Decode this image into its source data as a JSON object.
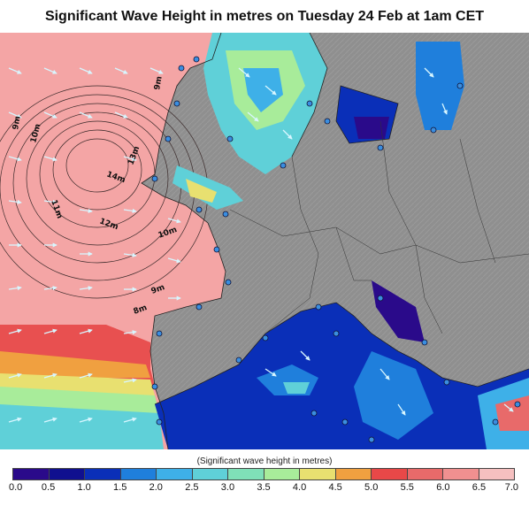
{
  "title": "Significant Wave Height in metres on Tuesday 24 Feb at 1am CET",
  "legend": {
    "caption": "(Significant wave height in metres)",
    "ticks": [
      "0.0",
      "0.5",
      "1.0",
      "1.5",
      "2.0",
      "2.5",
      "3.0",
      "3.5",
      "4.0",
      "4.5",
      "5.0",
      "5.5",
      "6.0",
      "6.5",
      "7.0"
    ],
    "colors": [
      "#2a0a8a",
      "#10108f",
      "#0a2fb8",
      "#1f7fdc",
      "#3eb0e8",
      "#5fd0d8",
      "#7fe0b8",
      "#a8ec9a",
      "#e8e070",
      "#f0a040",
      "#e84848",
      "#e86a6a",
      "#f09090",
      "#f6c0c0"
    ]
  },
  "map": {
    "land_color": "#8c8c8c",
    "contour_labels": [
      "9m",
      "10m",
      "11m",
      "12m",
      "13m",
      "14m",
      "10m",
      "9m",
      "8m",
      "9m"
    ]
  }
}
